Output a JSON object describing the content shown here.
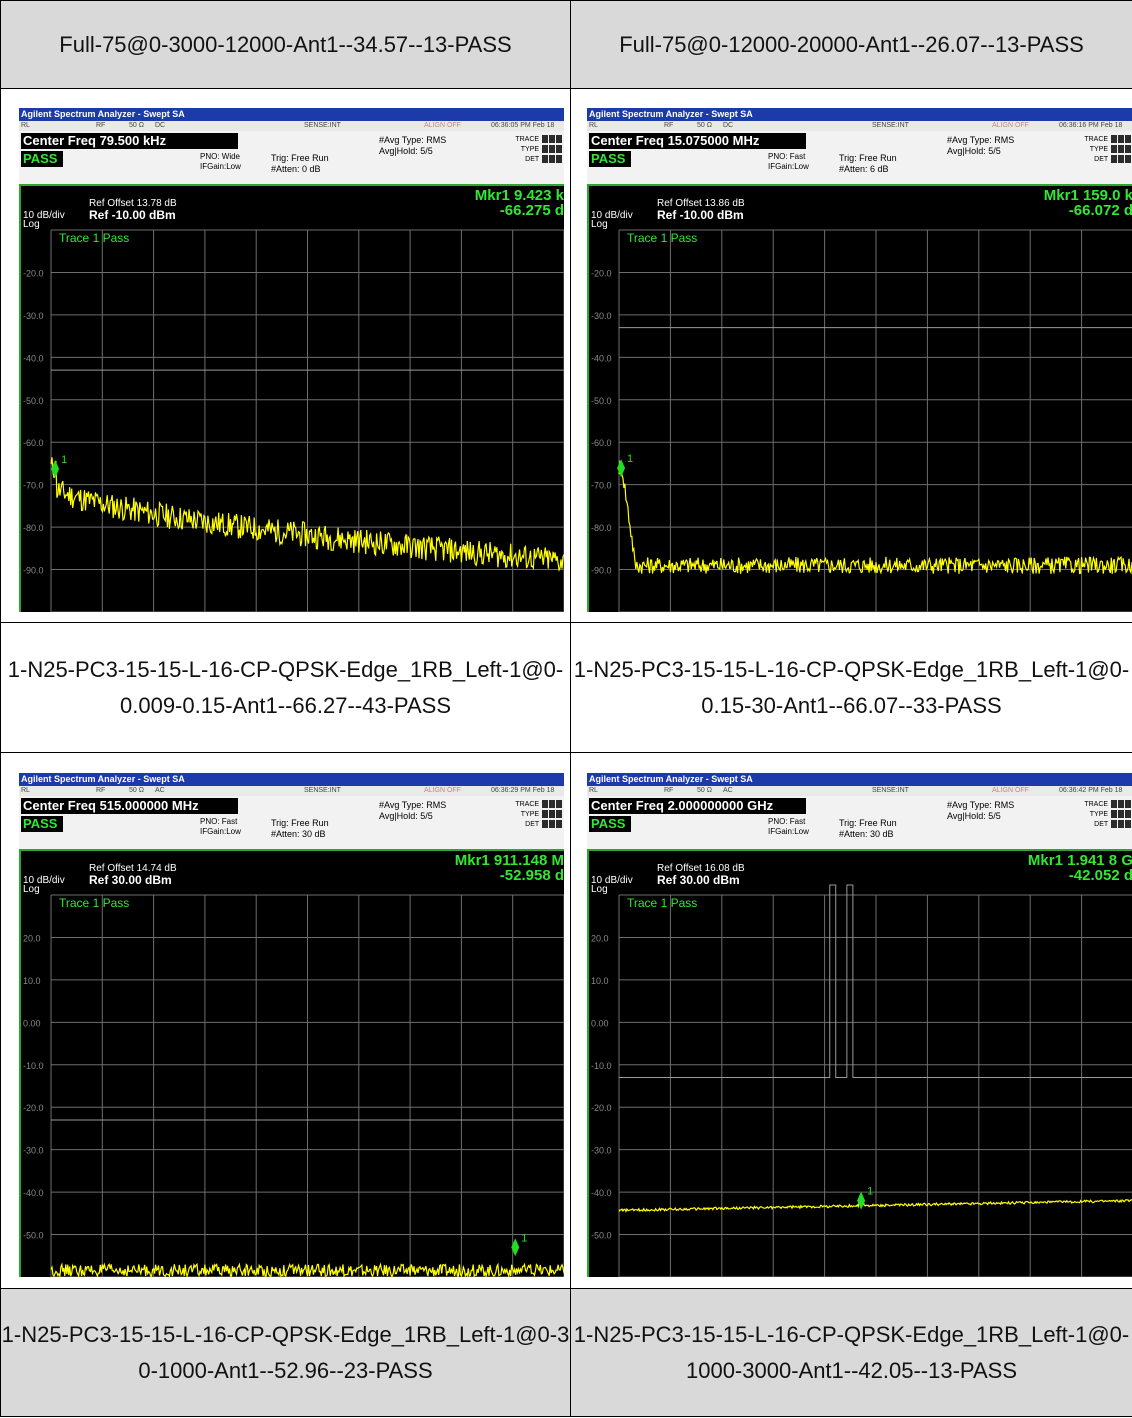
{
  "captions": [
    "Full-75@0-3000-12000-Ant1--34.57--13-PASS",
    "Full-75@0-12000-20000-Ant1--26.07--13-PASS",
    "1-N25-PC3-15-15-L-16-CP-QPSK-Edge_1RB_Left-1@0-0.009-0.15-Ant1--66.27--43-PASS",
    "1-N25-PC3-15-15-L-16-CP-QPSK-Edge_1RB_Left-1@0-0.15-30-Ant1--66.07--33-PASS",
    "1-N25-PC3-15-15-L-16-CP-QPSK-Edge_1RB_Left-1@0-30-1000-Ant1--52.96--23-PASS",
    "1-N25-PC3-15-15-L-16-CP-QPSK-Edge_1RB_Left-1@0-1000-3000-Ant1--42.05--13-PASS"
  ],
  "common": {
    "window_title": "Agilent Spectrum Analyzer - Swept SA",
    "rl": "RL",
    "rf": "RF",
    "impedance": "50 Ω",
    "sense": "SENSE:INT",
    "align": "ALIGN OFF",
    "pass": "PASS",
    "avg_type": "#Avg Type: RMS",
    "avg_hold": "Avg|Hold: 5/5",
    "trig": "Trig: Free Run",
    "trace_label": "Trace 1 Pass",
    "db_div": "10 dB/div",
    "log": "Log",
    "ifgain": "IFGain:Low",
    "trace_txt": "TRACE",
    "type_txt": "TYPE",
    "det_txt": "DET",
    "marker_num": "1",
    "colors": {
      "trace": "#ffff00",
      "marker": "#22dd22",
      "grid": "#6e6e6e",
      "title_bar": "#1c3aa9"
    }
  },
  "shots": [
    {
      "coupling": "DC",
      "time": "06:36:05 PM Feb 18",
      "center_freq": "Center Freq 79.500 kHz",
      "pno": "PNO: Wide",
      "atten": "#Atten: 0 dB",
      "ref_offset": "Ref Offset 13.78 dB",
      "ref": "Ref -10.00 dBm",
      "marker_freq": "Mkr1 9.423 k",
      "marker_val": "-66.275 d",
      "y_ticks": [
        "-20.0",
        "-30.0",
        "-40.0",
        "-50.0",
        "-60.0",
        "-70.0",
        "-80.0",
        "-90.0"
      ],
      "y_top": -10,
      "limit_lines": [
        {
          "y": -43
        }
      ],
      "trace_shape": "decay",
      "marker_pos": {
        "x_frac": 0.008,
        "y_db": -66.3
      }
    },
    {
      "coupling": "DC",
      "time": "06:36:16 PM Feb 18",
      "center_freq": "Center Freq 15.075000 MHz",
      "pno": "PNO: Fast",
      "atten": "#Atten: 6 dB",
      "ref_offset": "Ref Offset 13.86 dB",
      "ref": "Ref -10.00 dBm",
      "marker_freq": "Mkr1 159.0 k",
      "marker_val": "-66.072 d",
      "y_ticks": [
        "-20.0",
        "-30.0",
        "-40.0",
        "-50.0",
        "-60.0",
        "-70.0",
        "-80.0",
        "-90.0"
      ],
      "y_top": -10,
      "limit_lines": [
        {
          "y": -33
        }
      ],
      "trace_shape": "fastdrop",
      "marker_pos": {
        "x_frac": 0.004,
        "y_db": -66.1
      }
    },
    {
      "coupling": "AC",
      "time": "06:36:29 PM Feb 18",
      "center_freq": "Center Freq 515.000000 MHz",
      "pno": "PNO: Fast",
      "atten": "#Atten: 30 dB",
      "ref_offset": "Ref Offset 14.74 dB",
      "ref": "Ref 30.00 dBm",
      "marker_freq": "Mkr1 911.148 M",
      "marker_val": "-52.958 d",
      "y_ticks": [
        "20.0",
        "10.0",
        "0.00",
        "-10.0",
        "-20.0",
        "-30.0",
        "-40.0",
        "-50.0"
      ],
      "y_top": 30,
      "limit_lines": [
        {
          "y": -23
        }
      ],
      "trace_shape": "flat",
      "marker_pos": {
        "x_frac": 0.905,
        "y_db": -53.0
      }
    },
    {
      "coupling": "AC",
      "time": "06:36:42 PM Feb 18",
      "center_freq": "Center Freq 2.000000000 GHz",
      "pno": "PNO: Fast",
      "atten": "#Atten: 30 dB",
      "ref_offset": "Ref Offset 16.08 dB",
      "ref": "Ref 30.00 dBm",
      "marker_freq": "Mkr1 1.941 8 G",
      "marker_val": "-42.052 d",
      "y_ticks": [
        "20.0",
        "10.0",
        "0.00",
        "-10.0",
        "-20.0",
        "-30.0",
        "-40.0",
        "-50.0"
      ],
      "y_top": 30,
      "limit_lines": [
        {
          "y": -13,
          "notch": true
        }
      ],
      "trace_shape": "rising",
      "marker_pos": {
        "x_frac": 0.471,
        "y_db": -42.0
      }
    }
  ]
}
